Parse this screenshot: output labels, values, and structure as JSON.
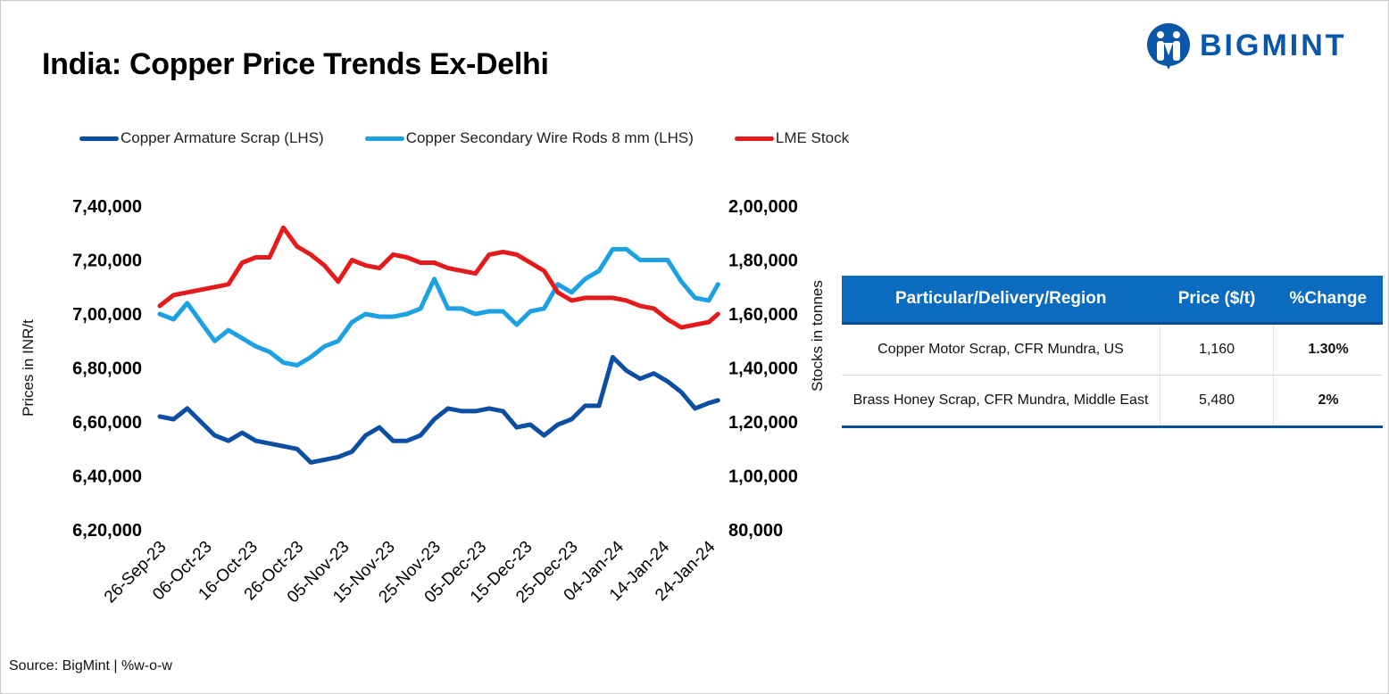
{
  "title": "India: Copper Price Trends Ex-Delhi",
  "logo": {
    "text": "BIGMINT",
    "color": "#0a56a8"
  },
  "source": "Source: BigMint | %w-o-w",
  "chart_data": {
    "type": "line",
    "x": [
      "26-Sep-23",
      "29-Sep-23",
      "02-Oct-23",
      "05-Oct-23",
      "08-Oct-23",
      "11-Oct-23",
      "14-Oct-23",
      "17-Oct-23",
      "20-Oct-23",
      "23-Oct-23",
      "26-Oct-23",
      "29-Oct-23",
      "01-Nov-23",
      "04-Nov-23",
      "07-Nov-23",
      "10-Nov-23",
      "13-Nov-23",
      "16-Nov-23",
      "19-Nov-23",
      "22-Nov-23",
      "25-Nov-23",
      "28-Nov-23",
      "01-Dec-23",
      "04-Dec-23",
      "07-Dec-23",
      "10-Dec-23",
      "13-Dec-23",
      "16-Dec-23",
      "19-Dec-23",
      "22-Dec-23",
      "25-Dec-23",
      "28-Dec-23",
      "31-Dec-23",
      "03-Jan-24",
      "06-Jan-24",
      "09-Jan-24",
      "12-Jan-24",
      "15-Jan-24",
      "18-Jan-24",
      "21-Jan-24",
      "24-Jan-24",
      "26-Jan-24"
    ],
    "x_ticks": [
      "26-Sep-23",
      "06-Oct-23",
      "16-Oct-23",
      "26-Oct-23",
      "05-Nov-23",
      "15-Nov-23",
      "25-Nov-23",
      "05-Dec-23",
      "15-Dec-23",
      "25-Dec-23",
      "04-Jan-24",
      "14-Jan-24",
      "24-Jan-24"
    ],
    "y_left": {
      "label": "Prices in INR/t",
      "lim": [
        620000,
        740000
      ],
      "ticks": [
        "6,20,000",
        "6,40,000",
        "6,60,000",
        "6,80,000",
        "7,00,000",
        "7,20,000",
        "7,40,000"
      ]
    },
    "y_right": {
      "label": "Stocks in tonnes",
      "lim": [
        80000,
        200000
      ],
      "ticks": [
        "80,000",
        "1,00,000",
        "1,20,000",
        "1,40,000",
        "1,60,000",
        "1,80,000",
        "2,00,000"
      ]
    },
    "grid": false,
    "legend_position": "top",
    "series": [
      {
        "name": "Copper Armature Scrap (LHS)",
        "axis": "left",
        "color": "#0b4ea2",
        "values": [
          662000,
          661000,
          665000,
          660000,
          655000,
          653000,
          656000,
          653000,
          652000,
          651000,
          650000,
          645000,
          646000,
          647000,
          649000,
          655000,
          658000,
          653000,
          653000,
          655000,
          661000,
          665000,
          664000,
          664000,
          665000,
          664000,
          658000,
          659000,
          655000,
          659000,
          661000,
          666000,
          666000,
          684000,
          679000,
          676000,
          678000,
          675000,
          671000,
          665000,
          667000,
          668000
        ]
      },
      {
        "name": "Copper Secondary Wire Rods 8 mm (LHS)",
        "axis": "left",
        "color": "#1da1e2",
        "values": [
          700000,
          698000,
          704000,
          697000,
          690000,
          694000,
          691000,
          688000,
          686000,
          682000,
          681000,
          684000,
          688000,
          690000,
          697000,
          700000,
          699000,
          699000,
          700000,
          702000,
          713000,
          702000,
          702000,
          700000,
          701000,
          701000,
          696000,
          701000,
          702000,
          711000,
          708000,
          713000,
          716000,
          724000,
          724000,
          720000,
          720000,
          720000,
          712000,
          706000,
          705000,
          711000
        ]
      },
      {
        "name": "LME Stock",
        "axis": "right",
        "color": "#e51b1b",
        "values": [
          163000,
          167000,
          168000,
          169000,
          170000,
          171000,
          179000,
          181000,
          181000,
          192000,
          185000,
          182000,
          178000,
          172000,
          180000,
          178000,
          177000,
          182000,
          181000,
          179000,
          179000,
          177000,
          176000,
          175000,
          182000,
          183000,
          182000,
          179000,
          176000,
          168000,
          165000,
          166000,
          166000,
          166000,
          165000,
          163000,
          162000,
          158000,
          155000,
          156000,
          157000,
          160000
        ]
      }
    ]
  },
  "table": {
    "headers": [
      "Particular/Delivery/Region",
      "Price ($/t)",
      "%Change"
    ],
    "rows": [
      {
        "particular": "Copper Motor Scrap, CFR Mundra, US",
        "price": "1,160",
        "change": "1.30%"
      },
      {
        "particular": "Brass Honey Scrap, CFR Mundra, Middle East",
        "price": "5,480",
        "change": "2%"
      }
    ]
  }
}
